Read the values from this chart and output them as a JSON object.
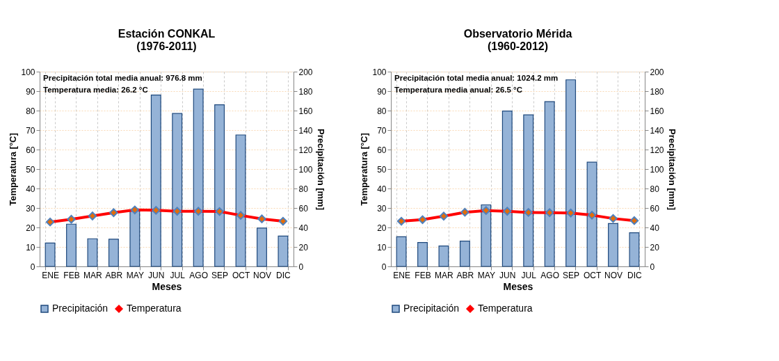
{
  "chart_data": [
    {
      "type": "bar",
      "title": "Estación  CONKAL\n(1976-2011)",
      "xlabel": "Meses",
      "ylabel": "Temperatura [°C]",
      "y2label": "Precipitación [mm]",
      "categories": [
        "ENE",
        "FEB",
        "MAR",
        "ABR",
        "MAY",
        "JUN",
        "JUL",
        "AGO",
        "SEP",
        "OCT",
        "NOV",
        "DIC"
      ],
      "series": [
        {
          "name": "Precipitación",
          "axis": "y2",
          "color": "#95b3d7",
          "values": [
            24,
            43.4,
            28.4,
            28,
            58,
            176,
            157,
            182,
            166,
            135,
            39.4,
            31.2
          ]
        },
        {
          "name": "Temperatura",
          "type": "line",
          "color": "#ff0000",
          "values": [
            22.8,
            24.2,
            25.9,
            27.6,
            29.0,
            28.8,
            28.3,
            28.3,
            28.2,
            26.2,
            24.4,
            23.2
          ]
        }
      ],
      "ylim": [
        0,
        100
      ],
      "yticks": [
        0,
        10,
        20,
        30,
        40,
        50,
        60,
        70,
        80,
        90,
        100
      ],
      "y2lim": [
        0,
        200
      ],
      "y2ticks": [
        0,
        20,
        40,
        60,
        80,
        100,
        120,
        140,
        160,
        180,
        200
      ],
      "annotations": [
        "Precipitación total media anual: 976.8 mm",
        "Temperatura media: 26.2 °C"
      ],
      "grid": true,
      "legend": "bottom",
      "marker": "diamond",
      "line_style": "solid"
    },
    {
      "type": "bar",
      "title": "Observatorio Mérida\n(1960-2012)",
      "xlabel": "Meses",
      "ylabel": "Temperatura [°C]",
      "y2label": "Precipitación [mm]",
      "categories": [
        "ENE",
        "FEB",
        "MAR",
        "ABR",
        "MAY",
        "JUN",
        "JUL",
        "AGO",
        "SEP",
        "OCT",
        "NOV",
        "DIC"
      ],
      "series": [
        {
          "name": "Precipitación",
          "axis": "y2",
          "color": "#95b3d7",
          "values": [
            30.4,
            24.6,
            21,
            26,
            63.2,
            159.6,
            155.6,
            169.2,
            191.6,
            107,
            44,
            34.6
          ]
        },
        {
          "name": "Temperatura",
          "type": "line",
          "color": "#ff0000",
          "values": [
            23.2,
            24.0,
            25.8,
            27.8,
            28.7,
            28.3,
            27.7,
            27.6,
            27.4,
            26.3,
            24.6,
            23.5
          ]
        }
      ],
      "ylim": [
        0,
        100
      ],
      "yticks": [
        0,
        10,
        20,
        30,
        40,
        50,
        60,
        70,
        80,
        90,
        100
      ],
      "y2lim": [
        0,
        200
      ],
      "y2ticks": [
        0,
        20,
        40,
        60,
        80,
        100,
        120,
        140,
        160,
        180,
        200
      ],
      "annotations": [
        "Precipitación total media anual: 1024.2 mm",
        "Temperatura media anual: 26.5 °C"
      ],
      "grid": true,
      "legend": "bottom",
      "marker": "diamond",
      "line_style": "solid"
    }
  ]
}
